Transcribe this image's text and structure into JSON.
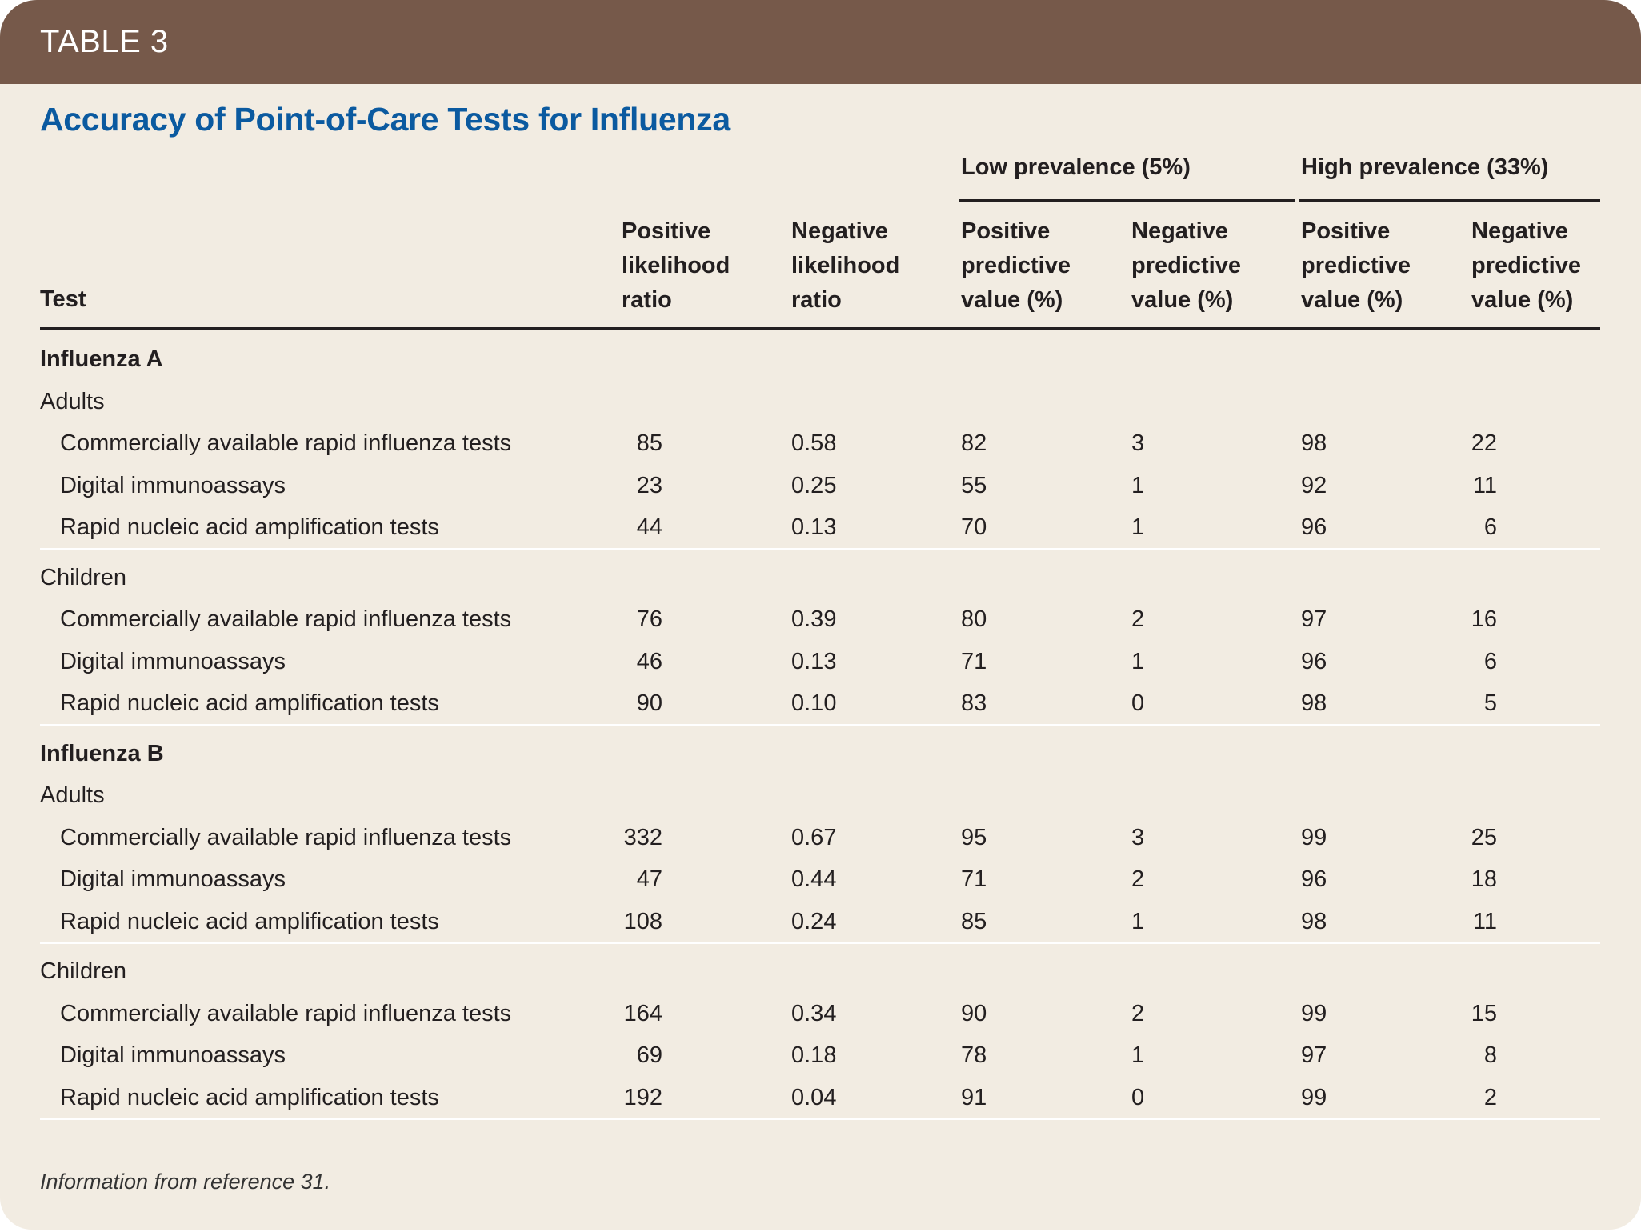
{
  "banner": {
    "label": "TABLE 3",
    "color": "#76594a"
  },
  "title": {
    "text": "Accuracy of Point-of-Care Tests for Influenza",
    "color": "#0b5aa0"
  },
  "column_groups": [
    {
      "label": "Low prevalence (5%)"
    },
    {
      "label": "High prevalence (33%)"
    }
  ],
  "columns": [
    {
      "label": "Test"
    },
    {
      "lines": [
        "Positive",
        "likelihood",
        "ratio"
      ]
    },
    {
      "lines": [
        "Negative",
        "likelihood",
        "ratio"
      ]
    },
    {
      "lines": [
        "Positive",
        "predictive",
        "value (%)"
      ]
    },
    {
      "lines": [
        "Negative",
        "predictive",
        "value (%)"
      ]
    },
    {
      "lines": [
        "Positive",
        "predictive",
        "value (%)"
      ]
    },
    {
      "lines": [
        "Negative",
        "predictive",
        "value (%)"
      ]
    }
  ],
  "sections": [
    {
      "name": "Influenza A",
      "groups": [
        {
          "name": "Adults",
          "rows": [
            {
              "test": "Commercially available rapid influenza tests",
              "values": [
                "85",
                "0.58",
                "82",
                "3",
                "98",
                "22"
              ]
            },
            {
              "test": "Digital immunoassays",
              "values": [
                "23",
                "0.25",
                "55",
                "1",
                "92",
                "11"
              ]
            },
            {
              "test": "Rapid nucleic acid amplification tests",
              "values": [
                "44",
                "0.13",
                "70",
                "1",
                "96",
                "6"
              ]
            }
          ]
        },
        {
          "name": "Children",
          "rows": [
            {
              "test": "Commercially available rapid influenza tests",
              "values": [
                "76",
                "0.39",
                "80",
                "2",
                "97",
                "16"
              ]
            },
            {
              "test": "Digital immunoassays",
              "values": [
                "46",
                "0.13",
                "71",
                "1",
                "96",
                "6"
              ]
            },
            {
              "test": "Rapid nucleic acid amplification tests",
              "values": [
                "90",
                "0.10",
                "83",
                "0",
                "98",
                "5"
              ]
            }
          ]
        }
      ]
    },
    {
      "name": "Influenza B",
      "groups": [
        {
          "name": "Adults",
          "rows": [
            {
              "test": "Commercially available rapid influenza tests",
              "values": [
                "332",
                "0.67",
                "95",
                "3",
                "99",
                "25"
              ]
            },
            {
              "test": "Digital immunoassays",
              "values": [
                "47",
                "0.44",
                "71",
                "2",
                "96",
                "18"
              ]
            },
            {
              "test": "Rapid nucleic acid amplification tests",
              "values": [
                "108",
                "0.24",
                "85",
                "1",
                "98",
                "11"
              ]
            }
          ]
        },
        {
          "name": "Children",
          "rows": [
            {
              "test": "Commercially available rapid influenza tests",
              "values": [
                "164",
                "0.34",
                "90",
                "2",
                "99",
                "15"
              ]
            },
            {
              "test": "Digital immunoassays",
              "values": [
                "69",
                "0.18",
                "78",
                "1",
                "97",
                "8"
              ]
            },
            {
              "test": "Rapid nucleic acid amplification tests",
              "values": [
                "192",
                "0.04",
                "91",
                "0",
                "99",
                "2"
              ]
            }
          ]
        }
      ]
    }
  ],
  "footnote": "Information from reference 31."
}
